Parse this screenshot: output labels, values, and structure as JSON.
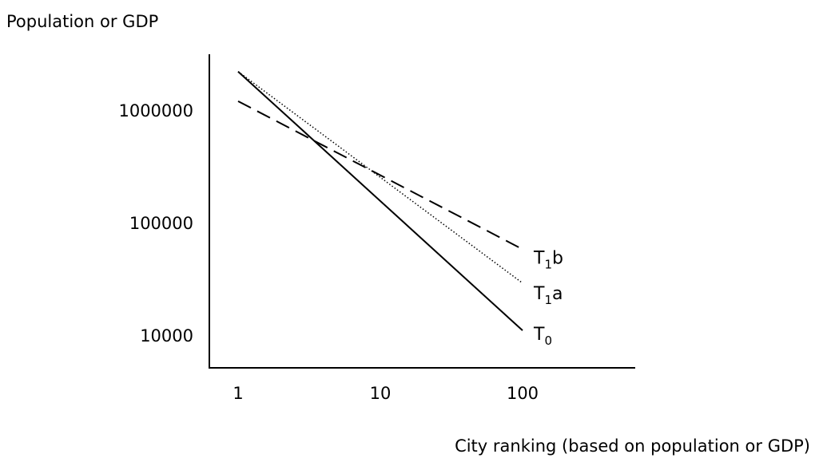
{
  "chart_data": {
    "type": "line",
    "scale": "log-log",
    "ylabel": "Population or GDP",
    "xlabel": "City ranking (based on population or GDP)",
    "x_ticks": [
      "1",
      "10",
      "100"
    ],
    "y_ticks": [
      "1000000",
      "100000",
      "10000"
    ],
    "xlim": [
      1,
      100
    ],
    "ylim": [
      10000,
      1000000
    ],
    "grid": false,
    "series": [
      {
        "label_base": "T",
        "label_sub": "0",
        "label_suffix": "",
        "line_style": "solid",
        "x": [
          1,
          100
        ],
        "y": [
          2200000,
          11000
        ]
      },
      {
        "label_base": "T",
        "label_sub": "1",
        "label_suffix": "a",
        "line_style": "dotted",
        "x": [
          1,
          100
        ],
        "y": [
          2200000,
          29000
        ]
      },
      {
        "label_base": "T",
        "label_sub": "1",
        "label_suffix": "b",
        "line_style": "dashed",
        "x": [
          1,
          100
        ],
        "y": [
          1200000,
          58000
        ]
      }
    ]
  }
}
